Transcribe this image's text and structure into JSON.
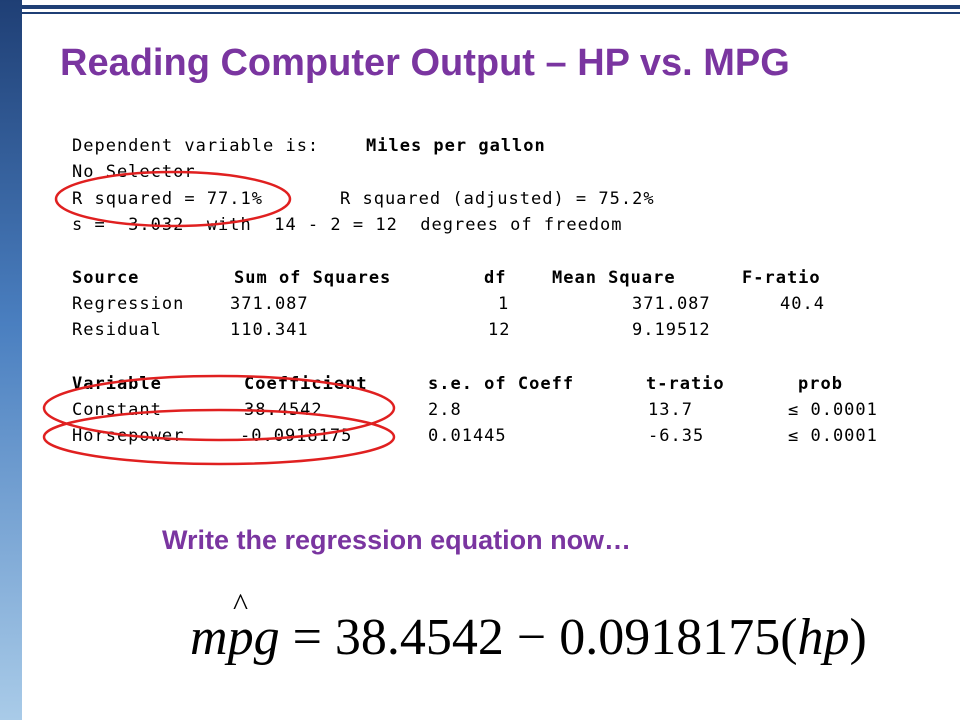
{
  "slide": {
    "title": "Reading Computer Output – HP vs. MPG",
    "prompt": "Write the regression equation now…"
  },
  "output": {
    "dep_label": "Dependent variable is:",
    "dep_value": "Miles per gallon",
    "selector": "No Selector",
    "r_squared": "R squared = 77.1%",
    "r_squared_adj": "R squared (adjusted) = 75.2%",
    "s_line": "s =  3.032  with  14 - 2 = 12  degrees of freedom",
    "anova": {
      "headers": [
        "Source",
        "Sum of Squares",
        "df",
        "Mean Square",
        "F-ratio"
      ],
      "rows": [
        [
          "Regression",
          "371.087",
          "1",
          "371.087",
          "40.4"
        ],
        [
          "Residual",
          "110.341",
          "12",
          "9.19512",
          ""
        ]
      ]
    },
    "coef": {
      "headers": [
        "Variable",
        "Coefficient",
        "s.e. of Coeff",
        "t-ratio",
        "prob"
      ],
      "rows": [
        [
          "Constant",
          "38.4542",
          "2.8",
          "13.7",
          "≤ 0.0001"
        ],
        [
          "Horsepower",
          "-0.0918175",
          "0.01445",
          "-6.35",
          "≤ 0.0001"
        ]
      ]
    }
  },
  "equation": {
    "lhs_m": "m",
    "lhs_p": "p",
    "lhs_g": "g",
    "equals": "=",
    "intercept": "38.4542",
    "minus": "−",
    "slope": "0.0918175",
    "var_open": "(",
    "var": "hp",
    "var_close": ")"
  },
  "colors": {
    "title": "#7a35a0",
    "circle": "#e02020",
    "bar": "#1f3f75"
  }
}
